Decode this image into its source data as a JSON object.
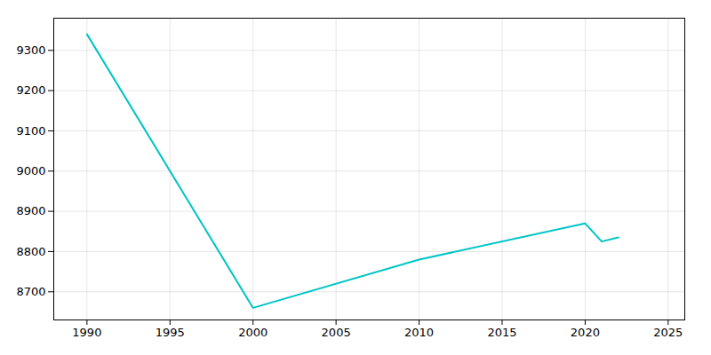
{
  "chart_data": {
    "type": "line",
    "x": [
      1990,
      2000,
      2010,
      2020,
      2021,
      2022
    ],
    "values": [
      9340,
      8660,
      8780,
      8870,
      8825,
      8835
    ],
    "color": "#00c5c5",
    "xlim": [
      1988,
      2026
    ],
    "ylim": [
      8630,
      9380
    ],
    "xticks": [
      1990,
      1995,
      2000,
      2005,
      2010,
      2015,
      2020,
      2025
    ],
    "yticks": [
      8700,
      8800,
      8900,
      9000,
      9100,
      9200,
      9300
    ],
    "grid": true
  }
}
